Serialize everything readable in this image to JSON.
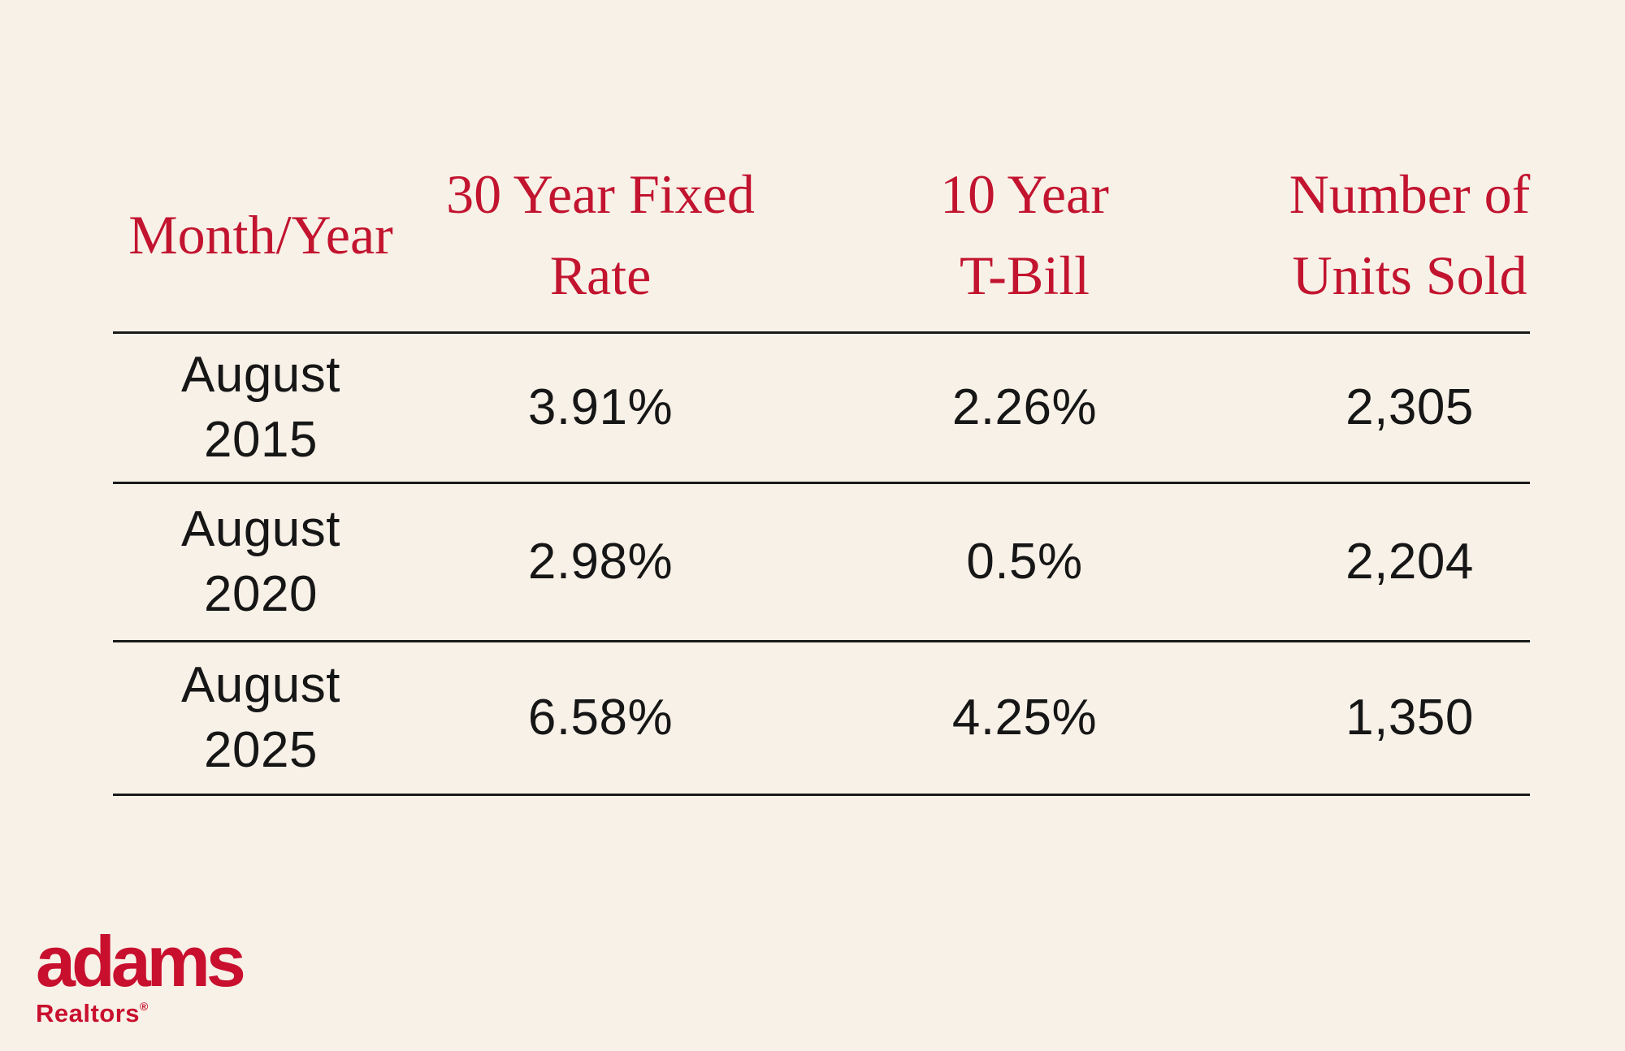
{
  "colors": {
    "background": "#F8F1E8",
    "header_red": "#C2142F",
    "logo_red": "#C8102E",
    "line": "#1A1A1A",
    "ink": "#161616"
  },
  "table": {
    "columns": [
      {
        "line1": "Month/Year",
        "line2": ""
      },
      {
        "line1": "30 Year Fixed",
        "line2": "Rate"
      },
      {
        "line1": "10 Year",
        "line2": "T-Bill"
      },
      {
        "line1": "Number of",
        "line2": "Units Sold"
      }
    ],
    "rows": [
      {
        "month": "August",
        "year": "2015",
        "fixed_rate": "3.91%",
        "t_bill": "2.26%",
        "units_sold": "2,305"
      },
      {
        "month": "August",
        "year": "2020",
        "fixed_rate": "2.98%",
        "t_bill": "0.5%",
        "units_sold": "2,204"
      },
      {
        "month": "August",
        "year": "2025",
        "fixed_rate": "6.58%",
        "t_bill": "4.25%",
        "units_sold": "1,350"
      }
    ]
  },
  "logo": {
    "brand": "adams",
    "subbrand": "Realtors",
    "registered_mark": "®"
  },
  "chart_data": {
    "type": "table",
    "columns": [
      "Month/Year",
      "30 Year Fixed Rate",
      "10 Year T-Bill",
      "Number of Units Sold"
    ],
    "rows": [
      [
        "August 2015",
        "3.91%",
        "2.26%",
        "2,305"
      ],
      [
        "August 2020",
        "2.98%",
        "0.5%",
        "2,204"
      ],
      [
        "August 2025",
        "6.58%",
        "4.25%",
        "1,350"
      ]
    ],
    "series": [
      {
        "name": "30 Year Fixed Rate (%)",
        "x": [
          "2015-08",
          "2020-08",
          "2025-08"
        ],
        "values": [
          3.91,
          2.98,
          6.58
        ]
      },
      {
        "name": "10 Year T-Bill (%)",
        "x": [
          "2015-08",
          "2020-08",
          "2025-08"
        ],
        "values": [
          2.26,
          0.5,
          4.25
        ]
      },
      {
        "name": "Number of Units Sold",
        "x": [
          "2015-08",
          "2020-08",
          "2025-08"
        ],
        "values": [
          2305,
          2204,
          1350
        ]
      }
    ]
  }
}
